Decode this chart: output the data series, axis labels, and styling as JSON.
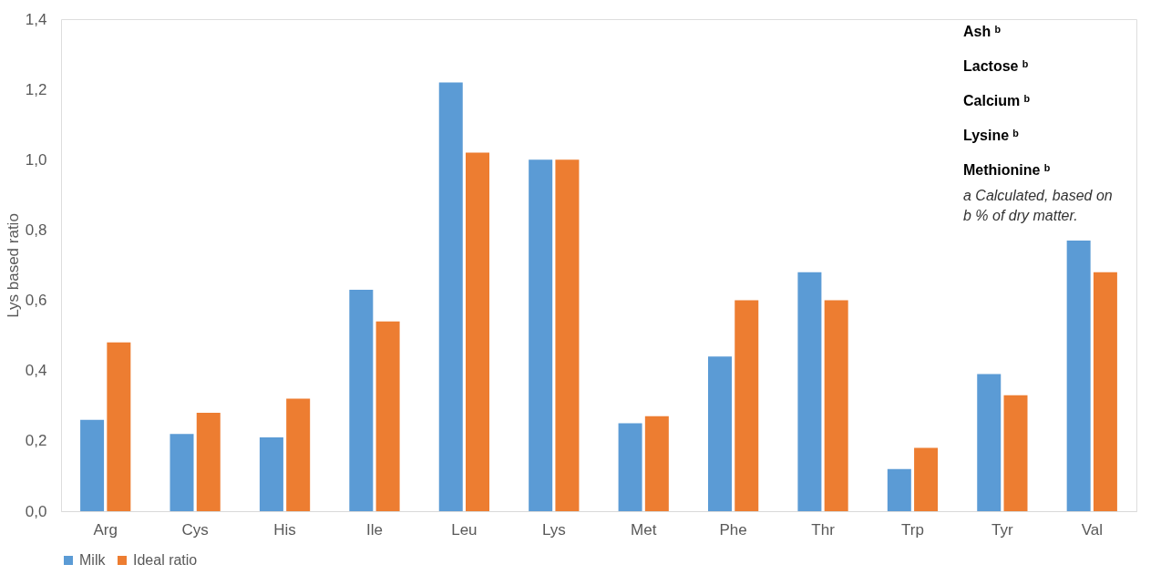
{
  "chart_data": {
    "type": "bar",
    "ylabel": "Lys based ratio",
    "categories": [
      "Arg",
      "Cys",
      "His",
      "Ile",
      "Leu",
      "Lys",
      "Met",
      "Phe",
      "Thr",
      "Trp",
      "Tyr",
      "Val"
    ],
    "series": [
      {
        "name": "Milk",
        "color": "#5b9bd5",
        "values": [
          0.26,
          0.22,
          0.21,
          0.63,
          1.22,
          1.0,
          0.25,
          0.44,
          0.68,
          0.12,
          0.39,
          0.77
        ]
      },
      {
        "name": "Ideal ratio",
        "color": "#ed7d31",
        "values": [
          0.48,
          0.28,
          0.32,
          0.54,
          1.02,
          1.0,
          0.27,
          0.6,
          0.6,
          0.18,
          0.33,
          0.68
        ]
      }
    ],
    "ylim": [
      0,
      1.4
    ],
    "yticks": [
      {
        "value": 0,
        "label": "0,0"
      },
      {
        "value": 0.2,
        "label": "0,2"
      },
      {
        "value": 0.4,
        "label": "0,4"
      },
      {
        "value": 0.6,
        "label": "0,6"
      },
      {
        "value": 0.8,
        "label": "0,8"
      },
      {
        "value": 1.0,
        "label": "1,0"
      },
      {
        "value": 1.2,
        "label": "1,2"
      },
      {
        "value": 1.4,
        "label": "1,4"
      }
    ],
    "grid": false,
    "legend": "bottom",
    "annotations": [
      "Ash ᵇ",
      "Lactose ᵇ",
      "Calcium ᵇ",
      "Lysine ᵇ",
      "Methionine ᵇ",
      "a Calculated, based on",
      "b % of dry matter."
    ]
  }
}
